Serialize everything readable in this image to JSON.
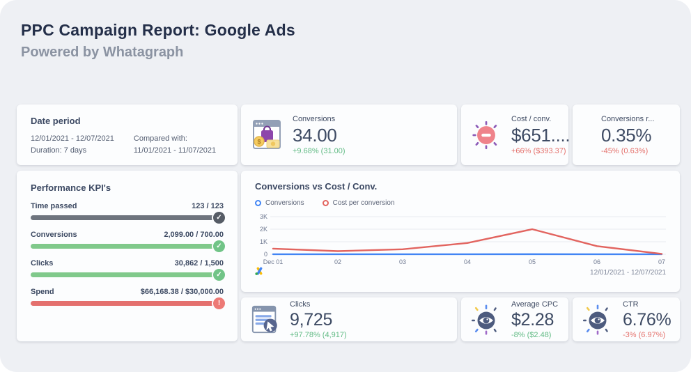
{
  "page": {
    "title": "PPC Campaign Report: Google Ads",
    "subtitle": "Powered by Whatagraph"
  },
  "date_period": {
    "title": "Date period",
    "range": "12/01/2021 - 12/07/2021",
    "duration": "Duration:  7 days",
    "compared_label": "Compared with:",
    "compared_range": "11/01/2021 - 11/07/2021"
  },
  "kpi": {
    "title": "Performance KPI's",
    "items": [
      {
        "label": "Time passed",
        "value": "123 / 123",
        "status": "neutral"
      },
      {
        "label": "Conversions",
        "value": "2,099.00 / 700.00",
        "status": "good"
      },
      {
        "label": "Clicks",
        "value": "30,862 / 1,500",
        "status": "good"
      },
      {
        "label": "Spend",
        "value": "$66,168.38 / $30,000.00",
        "status": "bad"
      }
    ]
  },
  "metrics": {
    "conversions": {
      "label": "Conversions",
      "value": "34.00",
      "change": "+9.68% (31.00)",
      "sentiment": "pos"
    },
    "cost_per_conv": {
      "label": "Cost / conv.",
      "value": "$651....",
      "change": "+66% ($393.37)",
      "sentiment": "neg"
    },
    "conversion_rate": {
      "label": "Conversions r...",
      "value": "0.35%",
      "change": "-45% (0.63%)",
      "sentiment": "neg"
    },
    "clicks": {
      "label": "Clicks",
      "value": "9,725",
      "change": "+97.78% (4,917)",
      "sentiment": "pos"
    },
    "avg_cpc": {
      "label": "Average CPC",
      "value": "$2.28",
      "change": "-8% ($2.48)",
      "sentiment": "pos"
    },
    "ctr": {
      "label": "CTR",
      "value": "6.76%",
      "change": "-3% (6.97%)",
      "sentiment": "neg"
    }
  },
  "chart_data": {
    "type": "line",
    "title": "Conversions vs Cost / Conv.",
    "categories": [
      "Dec 01",
      "02",
      "03",
      "04",
      "05",
      "06",
      "07"
    ],
    "series": [
      {
        "name": "Conversions",
        "color": "#4285f4",
        "values": [
          4,
          3,
          5,
          6,
          7,
          5,
          4
        ]
      },
      {
        "name": "Cost per conversion",
        "color": "#e2645f",
        "values": [
          450,
          250,
          400,
          900,
          2000,
          650,
          30
        ]
      }
    ],
    "ylim": [
      0,
      3000
    ],
    "yticks": [
      {
        "label": "0",
        "value": 0
      },
      {
        "label": "1K",
        "value": 1000
      },
      {
        "label": "2K",
        "value": 2000
      },
      {
        "label": "3K",
        "value": 3000
      }
    ],
    "legend_position": "top",
    "grid": true,
    "footer_range": "12/01/2021 - 12/07/2021"
  },
  "colors": {
    "accent_blue": "#4285f4",
    "accent_red": "#e2645f",
    "positive": "#62bb85",
    "negative": "#e4716c"
  }
}
